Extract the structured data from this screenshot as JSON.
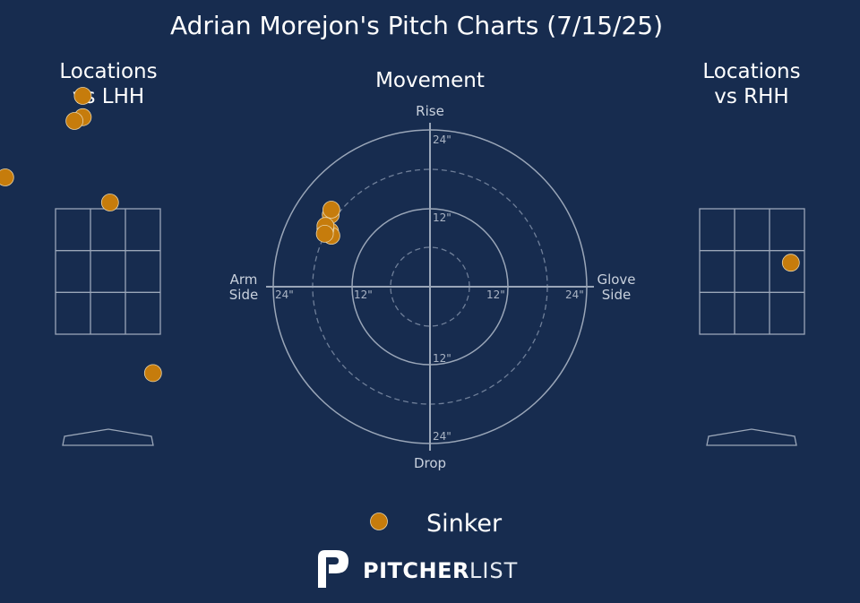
{
  "title": "Adrian Morejon's Pitch Charts (7/15/25)",
  "panels": {
    "lhh": {
      "title_line1": "Locations",
      "title_line2": "vs LHH"
    },
    "movement": {
      "title": "Movement"
    },
    "rhh": {
      "title_line1": "Locations",
      "title_line2": "vs RHH"
    }
  },
  "movement_axes": {
    "top": "Rise",
    "bottom": "Drop",
    "left_line1": "Arm",
    "left_line2": "Side",
    "right_line1": "Glove",
    "right_line2": "Side",
    "ring_labels": [
      "24\"",
      "12\"",
      "24\"",
      "12\"",
      "12\"",
      "24\"",
      "12\"",
      "24\""
    ]
  },
  "legend": {
    "label": "Sinker",
    "color": "#c67c0c"
  },
  "logo": {
    "bold": "PITCHER",
    "light": "LIST"
  },
  "colors": {
    "background": "#172c4f",
    "sinker": "#c67c0c",
    "lines": "#9aa6b8"
  },
  "chart_data": [
    {
      "type": "scatter",
      "title": "Locations vs LHH",
      "series": [
        {
          "name": "Sinker",
          "points": [
            {
              "col": -0.48,
              "row": -0.25
            },
            {
              "col": 0.26,
              "row": -0.9
            },
            {
              "col": 0.26,
              "row": -0.73
            },
            {
              "col": 0.18,
              "row": -0.7
            },
            {
              "col": 0.52,
              "row": -0.05
            },
            {
              "col": 0.93,
              "row": 1.31
            }
          ]
        }
      ]
    },
    {
      "type": "scatter",
      "title": "Movement",
      "rings": [
        6,
        12,
        18,
        24
      ],
      "series": [
        {
          "name": "Sinker",
          "points": [
            {
              "x": -15.2,
              "y": 11.0
            },
            {
              "x": -15.1,
              "y": 11.8
            },
            {
              "x": -15.3,
              "y": 8.5
            },
            {
              "x": -15.1,
              "y": 7.8
            },
            {
              "x": -16.0,
              "y": 8.8
            },
            {
              "x": -16.0,
              "y": 9.3
            },
            {
              "x": -16.1,
              "y": 8.1
            }
          ]
        }
      ]
    },
    {
      "type": "scatter",
      "title": "Locations vs RHH",
      "series": [
        {
          "name": "Sinker",
          "points": [
            {
              "col": 0.87,
              "row": 0.43
            }
          ]
        }
      ]
    }
  ]
}
